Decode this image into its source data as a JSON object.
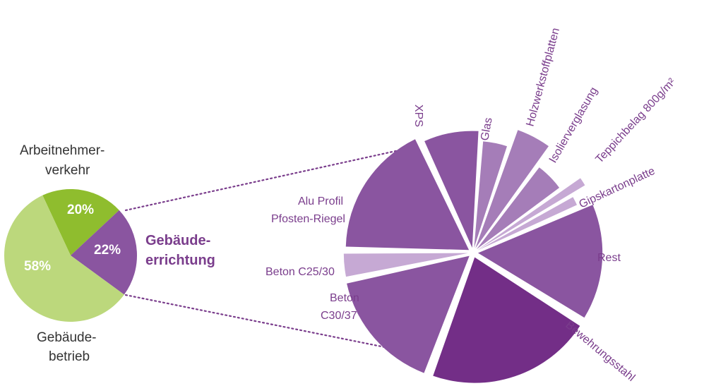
{
  "colors": {
    "light_green": "#bcd87c",
    "green": "#8fbd2e",
    "purple": "#8a55a0",
    "dark_purple": "#732e87",
    "mid_purple": "#a57db8",
    "light_purple": "#c6a9d4",
    "label_purple": "#7a3d8c",
    "dotted": "#7a3d8c"
  },
  "chart_data": [
    {
      "type": "pie",
      "slices": [
        {
          "name_lines": [
            "Arbeitnehmer-",
            "verkehr"
          ],
          "value": 20,
          "label": "20%",
          "color": "#8fbd2e"
        },
        {
          "name_lines": [
            "Gebäude-",
            "errichtung"
          ],
          "value": 22,
          "label": "22%",
          "color": "#8a55a0"
        },
        {
          "name_lines": [
            "Gebäude-",
            "betrieb"
          ],
          "value": 58,
          "label": "58%",
          "color": "#bcd87c"
        }
      ]
    },
    {
      "type": "pie",
      "slices": [
        {
          "name": "XPS",
          "share": 7.2,
          "radius_level": 0.93,
          "color": "#8a55a0"
        },
        {
          "name": "Glas",
          "share": 3.7,
          "radius_level": 0.85,
          "color": "#a57db8"
        },
        {
          "name": "Holzwerkstoffplatten",
          "share": 4.4,
          "radius_level": 1.0,
          "color": "#a57db8"
        },
        {
          "name": "Isolierverglasung",
          "share": 4.4,
          "radius_level": 0.82,
          "color": "#a57db8"
        },
        {
          "name": "Teppichbelag 800g/m²",
          "share": 1.4,
          "radius_level": 1.0,
          "color": "#c6a9d4"
        },
        {
          "name": "Gipskartonplatte",
          "share": 1.6,
          "radius_level": 0.87,
          "color": "#c6a9d4"
        },
        {
          "name": "Rest",
          "share": 13.9,
          "radius_level": 0.99,
          "color": "#8a55a0"
        },
        {
          "name": "Bewehrungsstahl",
          "share": 19.4,
          "radius_level": 1.0,
          "color": "#732e87"
        },
        {
          "name": "Beton C30/37",
          "share": 14.4,
          "radius_level": 1.0,
          "color": "#8a55a0"
        },
        {
          "name": "Beton C25/30",
          "share": 3.1,
          "radius_level": 0.99,
          "color": "#c6a9d4"
        },
        {
          "name": "Alu Profil Pfosten-Riegel",
          "share": 16.0,
          "radius_level": 0.98,
          "color": "#8a55a0"
        }
      ]
    }
  ],
  "labels": {
    "arbeit": [
      "Arbeitnehmer-",
      "verkehr"
    ],
    "betrieb": [
      "Gebäude-",
      "betrieb"
    ],
    "errichtung": [
      "Gebäude-",
      "errichtung"
    ],
    "pct": [
      "20%",
      "22%",
      "58%"
    ],
    "xps": "XPS",
    "glas": "Glas",
    "holz": "Holzwerkstoffplatten",
    "isolier": "Isolierverglasung",
    "teppich": "Teppichbelag 800g/m²",
    "gips": "Gipskartonplatte",
    "rest": "Rest",
    "bewehrung": "Bewehrungsstahl",
    "beton30": [
      "Beton",
      "C30/37"
    ],
    "beton25": "Beton C25/30",
    "alu": [
      "Alu Profil",
      "Pfosten-Riegel"
    ]
  }
}
